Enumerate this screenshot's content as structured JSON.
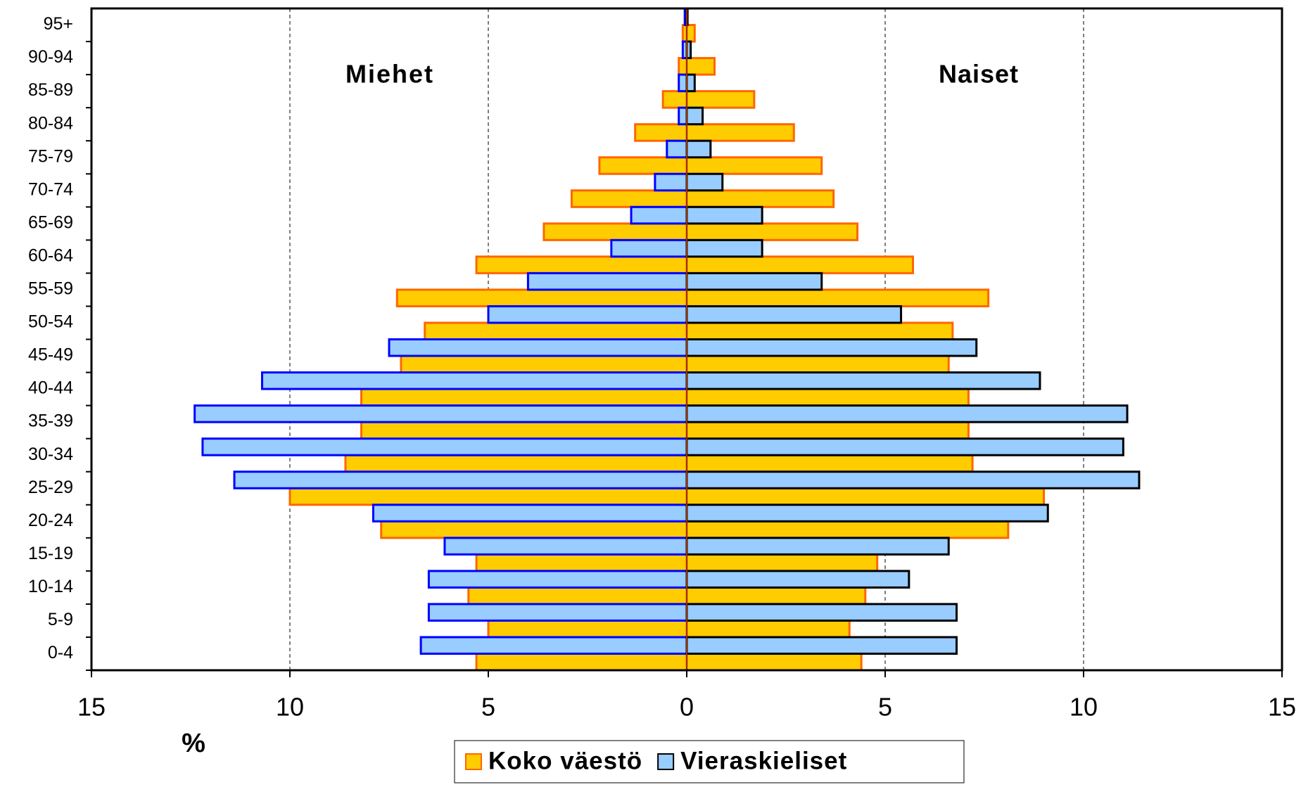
{
  "chart_data": {
    "type": "pyramid",
    "left_label": "Miehet",
    "right_label": "Naiset",
    "x_label": "%",
    "categories": [
      "0-4",
      "5-9",
      "10-14",
      "15-19",
      "20-24",
      "25-29",
      "30-34",
      "35-39",
      "40-44",
      "45-49",
      "50-54",
      "55-59",
      "60-64",
      "65-69",
      "70-74",
      "75-79",
      "80-84",
      "85-89",
      "90-94",
      "95+"
    ],
    "series": [
      {
        "name": "Koko väestö",
        "color": "#ffcc00",
        "edge_left": "#ff6600",
        "edge_right": "#ff6600",
        "left": [
          -5.3,
          -5.0,
          -5.5,
          -5.3,
          -7.7,
          -10.0,
          -8.6,
          -8.2,
          -8.2,
          -7.2,
          -6.6,
          -7.3,
          -5.3,
          -3.6,
          -2.9,
          -2.2,
          -1.3,
          -0.6,
          -0.2,
          -0.1
        ],
        "right": [
          4.4,
          4.1,
          4.5,
          4.8,
          8.1,
          9.0,
          7.2,
          7.1,
          7.1,
          6.6,
          6.7,
          7.6,
          5.7,
          4.3,
          3.7,
          3.4,
          2.7,
          1.7,
          0.7,
          0.2
        ]
      },
      {
        "name": "Vieraskieliset",
        "color": "#99ccff",
        "edge_left": "#0000ff",
        "edge_right": "#000000",
        "left": [
          -6.7,
          -6.5,
          -6.5,
          -6.1,
          -7.9,
          -11.4,
          -12.2,
          -12.4,
          -10.7,
          -7.5,
          -5.0,
          -4.0,
          -1.9,
          -1.4,
          -0.8,
          -0.5,
          -0.2,
          -0.2,
          -0.1,
          -0.05
        ],
        "right": [
          6.8,
          6.8,
          5.6,
          6.6,
          9.1,
          11.4,
          11.0,
          11.1,
          8.9,
          7.3,
          5.4,
          3.4,
          1.9,
          1.9,
          0.9,
          0.6,
          0.4,
          0.2,
          0.1,
          0.02
        ]
      }
    ],
    "xlim": [
      -15,
      15
    ],
    "xticks": [
      {
        "value": -15,
        "label": "15"
      },
      {
        "value": -10,
        "label": "10"
      },
      {
        "value": -5,
        "label": "5"
      },
      0,
      5,
      10,
      15
    ],
    "grid": true
  }
}
